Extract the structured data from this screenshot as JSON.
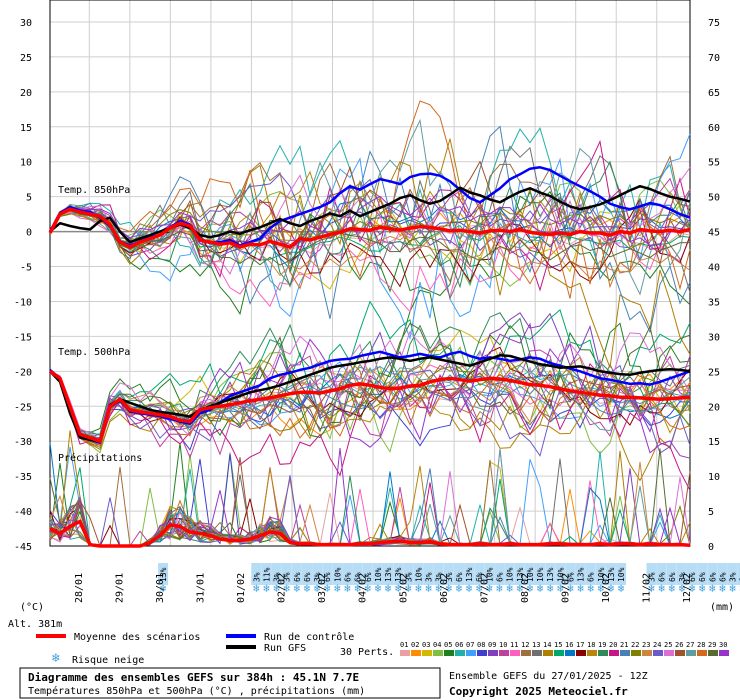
{
  "chart_data": {
    "type": "line",
    "title": "Diagramme des ensembles GEFS sur 384h : 45.1N 7.7E",
    "subtitle": "Températures 850hPa et 500hPa (°C) , précipitations (mm)",
    "run_label": "Ensemble GEFS du 27/01/2025 - 12Z",
    "copyright": "Copyright 2025 Meteociel.fr",
    "altitude": "Alt. 381m",
    "left_unit": "(°C)",
    "right_unit": "(mm)",
    "y_left_ticks": [
      30,
      25,
      20,
      15,
      10,
      5,
      0,
      -5,
      -10,
      -15,
      -20,
      -25,
      -30,
      -35,
      -40,
      -45
    ],
    "y_right_ticks": [
      75,
      70,
      65,
      60,
      55,
      50,
      45,
      40,
      35,
      30,
      25,
      20,
      15,
      10,
      5,
      0
    ],
    "ylim_left": [
      -45,
      30
    ],
    "ylim_right": [
      0,
      75
    ],
    "x_dates": [
      "28/01",
      "29/01",
      "30/01",
      "31/01",
      "01/02",
      "02/02",
      "03/02",
      "04/02",
      "05/02",
      "06/02",
      "07/02",
      "08/02",
      "09/02",
      "10/02",
      "11/02",
      "12/02"
    ],
    "panels": [
      {
        "label": "Temp. 850hPa"
      },
      {
        "label": "Temp. 500hPa"
      },
      {
        "label": "Précipitations"
      }
    ],
    "series": [
      {
        "name": "Moyenne des scénarios",
        "color": "#ff0000",
        "t850": [
          -0.2,
          2.5,
          3.2,
          2.8,
          2.5,
          2.2,
          1.0,
          -1.5,
          -2.2,
          -1.5,
          -1.0,
          -0.5,
          0.5,
          1.2,
          0.8,
          -1.2,
          -1.5,
          -1.8,
          -1.6,
          -2.2,
          -1.8,
          -1.9,
          -1.4,
          -1.8,
          -2.2,
          -1.0,
          -1.2,
          -0.8,
          -0.4,
          -0.1,
          0.4,
          0.3,
          0.2,
          0.6,
          0.4,
          0.2,
          0.5,
          0.7,
          0.6,
          0.4,
          0.1,
          0.2,
          0.0,
          -0.2,
          0.1,
          0.2,
          0.0,
          0.3,
          -0.1,
          -0.3,
          -0.4,
          -0.2,
          -0.4,
          0.0,
          -0.2,
          -0.2,
          -0.5,
          0.0,
          -0.2,
          0.3,
          0.1,
          0.0,
          0.2,
          0.0,
          0.3
        ],
        "t500": [
          -20,
          -21,
          -25,
          -29,
          -29.5,
          -30,
          -25,
          -24,
          -25.5,
          -25.8,
          -26,
          -26.2,
          -26.5,
          -27,
          -27.2,
          -25.5,
          -25.2,
          -25,
          -24.8,
          -24.5,
          -24.2,
          -24,
          -23.8,
          -23.5,
          -23.2,
          -23,
          -23,
          -23.1,
          -22.8,
          -22.5,
          -22,
          -21.8,
          -22,
          -22.3,
          -22.5,
          -22.4,
          -22.1,
          -22,
          -21.5,
          -21.2,
          -21,
          -21.2,
          -21.4,
          -21.2,
          -21,
          -21.1,
          -21.3,
          -21.6,
          -21.9,
          -22,
          -22.2,
          -22.5,
          -22.8,
          -23,
          -23.2,
          -23.4,
          -23.5,
          -23.7,
          -23.7,
          -23.8,
          -23.9,
          -24,
          -23.9,
          -23.8,
          -23.7
        ],
        "precip": [
          2.5,
          1.8,
          2.8,
          3.5,
          0.2,
          0,
          0,
          0,
          0,
          0,
          0.5,
          1.5,
          3.0,
          2.8,
          2.0,
          1.8,
          1.5,
          1.0,
          0.8,
          0.8,
          1.0,
          1.5,
          2.0,
          1.8,
          0.5,
          0.3,
          0.3,
          0.2,
          0.2,
          0.2,
          0.2,
          0.3,
          0.3,
          0.5,
          0.6,
          0.7,
          0.5,
          0.5,
          0.6,
          0.3,
          0.2,
          0.2,
          0.2,
          0.3,
          0.2,
          0.2,
          0.3,
          0.2,
          0.2,
          0.2,
          0.3,
          0.3,
          0.2,
          0.2,
          0.2,
          0.3,
          0.2,
          0.3,
          0.3,
          0.2,
          0.3,
          0.2,
          0.2,
          0.2,
          0.1
        ]
      },
      {
        "name": "Run de contrôle",
        "color": "#0000ff",
        "t850": [
          0.0,
          2.7,
          3.5,
          3.0,
          2.8,
          2.0,
          0.8,
          -1.4,
          -2.0,
          -1.4,
          -0.8,
          -0.5,
          0.6,
          1.5,
          1.0,
          -1.3,
          -1.6,
          -1.5,
          -1.2,
          -2.0,
          -1.5,
          -1.0,
          0.5,
          1.5,
          2.0,
          2.5,
          3.0,
          3.5,
          4.2,
          5.5,
          6.5,
          6.0,
          6.8,
          7.5,
          7.2,
          6.8,
          7.8,
          8.2,
          8.3,
          8.0,
          7.2,
          6.0,
          4.8,
          4.2,
          5.2,
          6.2,
          7.5,
          8.2,
          9.0,
          9.2,
          8.8,
          8.0,
          7.2,
          6.5,
          5.8,
          5.0,
          4.0,
          3.5,
          3.2,
          3.6,
          4.1,
          3.8,
          3.2,
          2.5,
          2.0
        ],
        "t500": [
          -19.8,
          -21,
          -25.2,
          -29.2,
          -29.8,
          -30.2,
          -25.1,
          -24.2,
          -25.7,
          -26,
          -26.2,
          -26.4,
          -26.8,
          -27.2,
          -27.5,
          -26,
          -25.5,
          -24.5,
          -23.5,
          -23,
          -22.5,
          -22,
          -21,
          -20.5,
          -20.2,
          -19.8,
          -19.5,
          -19,
          -18.5,
          -18.3,
          -18.2,
          -17.8,
          -17.5,
          -17.2,
          -17.6,
          -18,
          -17.8,
          -17.5,
          -17.8,
          -18,
          -17.5,
          -17.2,
          -17.8,
          -18.2,
          -18,
          -18.2,
          -18.5,
          -18.3,
          -18,
          -18.2,
          -18.8,
          -19.2,
          -19.6,
          -20,
          -20.5,
          -21,
          -21.2,
          -21.5,
          -21.8,
          -21.7,
          -21.9,
          -21.5,
          -21,
          -20.5,
          -20
        ]
      },
      {
        "name": "Run GFS",
        "color": "#000000",
        "t850": [
          0.0,
          1.2,
          0.8,
          0.5,
          0.3,
          1.5,
          2.0,
          0.0,
          -1.5,
          -1.0,
          -0.5,
          0.0,
          0.5,
          1.0,
          0.5,
          -0.5,
          -0.8,
          -0.5,
          0.0,
          -0.3,
          0.2,
          0.6,
          1.2,
          1.8,
          1.2,
          0.8,
          1.5,
          2.0,
          2.6,
          2.2,
          3.0,
          2.2,
          2.8,
          3.4,
          4.0,
          4.8,
          5.2,
          4.5,
          4.0,
          4.4,
          5.3,
          6.3,
          5.6,
          5.2,
          4.6,
          4.2,
          5.0,
          5.7,
          6.2,
          5.6,
          5.1,
          4.3,
          3.6,
          3.2,
          3.5,
          3.9,
          4.5,
          5.2,
          5.9,
          6.5,
          6.1,
          5.5,
          5.0,
          4.7,
          4.3
        ],
        "t500": [
          -20,
          -21.5,
          -26,
          -29.5,
          -29.8,
          -30,
          -24.8,
          -24,
          -24.5,
          -25,
          -25.5,
          -25.8,
          -26,
          -26.2,
          -26.5,
          -25.5,
          -25,
          -24.5,
          -24,
          -23.5,
          -23,
          -22.7,
          -22.4,
          -22,
          -21.5,
          -21,
          -20.5,
          -20,
          -19.5,
          -19.2,
          -19,
          -18.7,
          -18.5,
          -18.2,
          -18,
          -18.2,
          -18.5,
          -18.2,
          -18,
          -18.3,
          -18.6,
          -18.9,
          -19.2,
          -18.7,
          -18.2,
          -17.7,
          -17.8,
          -18.2,
          -18.6,
          -19,
          -19.2,
          -19.5,
          -19.4,
          -19.3,
          -19.6,
          -20,
          -20.2,
          -20.4,
          -20.5,
          -20.2,
          -20,
          -19.8,
          -19.7,
          -19.8,
          -20
        ]
      }
    ],
    "member_colors": [
      "#e8a0a0",
      "#ff8c00",
      "#d4b800",
      "#7fbf3f",
      "#1f7f1f",
      "#20b2aa",
      "#3fa0ff",
      "#3f3fcf",
      "#7f3fbf",
      "#bf3f9f",
      "#ff5fbf",
      "#9f6f3f",
      "#6f6f6f",
      "#af7f00",
      "#00a86b",
      "#0078c8",
      "#8b0000",
      "#b8860b",
      "#2e8b57",
      "#c71585",
      "#4682b4",
      "#808000",
      "#cd853f",
      "#6a5acd",
      "#da70d6",
      "#a0522d",
      "#5f9ea0",
      "#d2691e",
      "#556b2f",
      "#9932cc"
    ],
    "snow_risk": [
      {
        "date_index": 2,
        "pct": "13%"
      },
      {
        "date_index": 4.3,
        "pct": "3%"
      },
      {
        "date_index": 4.55,
        "pct": "11%"
      },
      {
        "date_index": 4.8,
        "pct": "3%"
      },
      {
        "date_index": 5.05,
        "pct": "3%"
      },
      {
        "date_index": 5.3,
        "pct": "6%"
      },
      {
        "date_index": 5.55,
        "pct": "6%"
      },
      {
        "date_index": 5.8,
        "pct": "3%"
      },
      {
        "date_index": 6.05,
        "pct": "6%"
      },
      {
        "date_index": 6.3,
        "pct": "10%"
      },
      {
        "date_index": 6.55,
        "pct": "6%"
      },
      {
        "date_index": 6.8,
        "pct": "6%"
      },
      {
        "date_index": 7.05,
        "pct": "6%"
      },
      {
        "date_index": 7.3,
        "pct": "10%"
      },
      {
        "date_index": 7.55,
        "pct": "13%"
      },
      {
        "date_index": 7.8,
        "pct": "13%"
      },
      {
        "date_index": 8.05,
        "pct": "3%"
      },
      {
        "date_index": 8.3,
        "pct": "10%"
      },
      {
        "date_index": 8.55,
        "pct": "3%"
      },
      {
        "date_index": 8.8,
        "pct": "3%"
      },
      {
        "date_index": 9.05,
        "pct": "3%"
      },
      {
        "date_index": 9.3,
        "pct": "6%"
      },
      {
        "date_index": 9.55,
        "pct": "13%"
      },
      {
        "date_index": 9.8,
        "pct": "6%"
      },
      {
        "date_index": 10.05,
        "pct": "10%"
      },
      {
        "date_index": 10.3,
        "pct": "6%"
      },
      {
        "date_index": 10.55,
        "pct": "10%"
      },
      {
        "date_index": 10.8,
        "pct": "13%"
      },
      {
        "date_index": 11.05,
        "pct": "10%"
      },
      {
        "date_index": 11.3,
        "pct": "10%"
      },
      {
        "date_index": 11.55,
        "pct": "13%"
      },
      {
        "date_index": 11.8,
        "pct": "10%"
      },
      {
        "date_index": 12.05,
        "pct": "6%"
      },
      {
        "date_index": 12.3,
        "pct": "13%"
      },
      {
        "date_index": 12.55,
        "pct": "6%"
      },
      {
        "date_index": 12.8,
        "pct": "10%"
      },
      {
        "date_index": 13.05,
        "pct": "13%"
      },
      {
        "date_index": 13.3,
        "pct": "10%"
      },
      {
        "date_index": 14.05,
        "pct": "3%"
      },
      {
        "date_index": 14.3,
        "pct": "6%"
      },
      {
        "date_index": 14.55,
        "pct": "6%"
      },
      {
        "date_index": 14.8,
        "pct": "3%"
      },
      {
        "date_index": 15.05,
        "pct": "6%"
      },
      {
        "date_index": 15.3,
        "pct": "6%"
      },
      {
        "date_index": 15.55,
        "pct": "6%"
      },
      {
        "date_index": 15.8,
        "pct": "6%"
      },
      {
        "date_index": 16.05,
        "pct": "3%"
      },
      {
        "date_index": 16.3,
        "pct": "6%"
      },
      {
        "date_index": 16.55,
        "pct": "6%"
      }
    ]
  },
  "legend": {
    "mean_label": "Moyenne des scénarios",
    "control_label": "Run de contrôle",
    "gfs_label": "Run GFS",
    "snow_label": "Risque neige",
    "perts_label": "30 Perts.",
    "perts_numbers": [
      "01",
      "02",
      "03",
      "04",
      "05",
      "06",
      "07",
      "08",
      "09",
      "10",
      "11",
      "12",
      "13",
      "14",
      "15",
      "16",
      "17",
      "18",
      "19",
      "20",
      "21",
      "22",
      "23",
      "24",
      "25",
      "26",
      "27",
      "28",
      "29",
      "30"
    ]
  }
}
